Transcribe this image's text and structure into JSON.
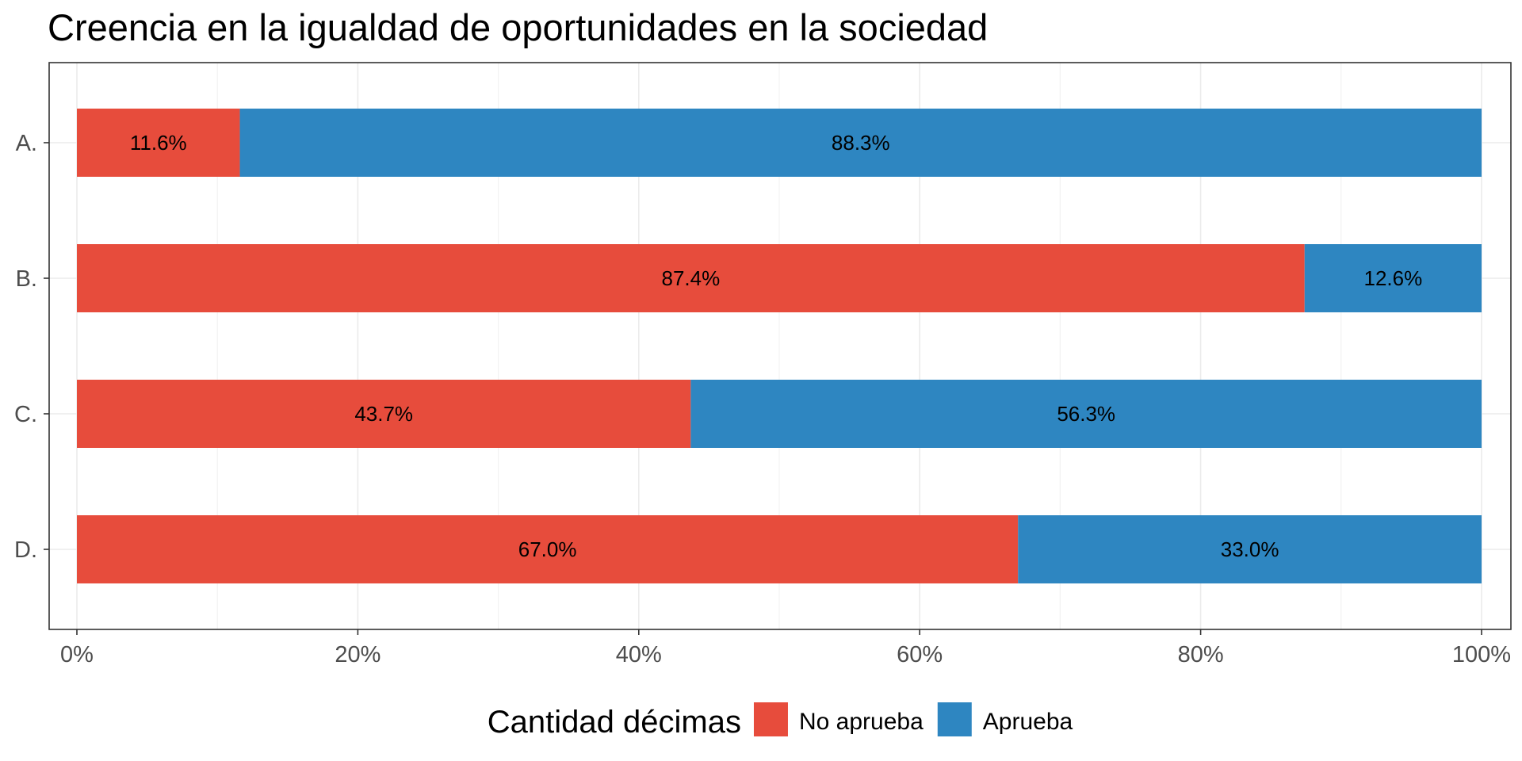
{
  "chart_data": {
    "type": "bar",
    "orientation": "horizontal",
    "stacked": true,
    "title": "Creencia en la igualdad de oportunidades en la sociedad",
    "categories": [
      "A.",
      "B.",
      "C.",
      "D."
    ],
    "series": [
      {
        "name": "No aprueba",
        "color": "#E74C3C",
        "values": [
          11.6,
          87.4,
          43.7,
          67.0
        ],
        "labels": [
          "11.6%",
          "87.4%",
          "43.7%",
          "67.0%"
        ]
      },
      {
        "name": "Aprueba",
        "color": "#2E86C1",
        "values": [
          88.3,
          12.6,
          56.3,
          33.0
        ],
        "labels": [
          "88.3%",
          "12.6%",
          "56.3%",
          "33.0%"
        ]
      }
    ],
    "x_ticks": [
      "0%",
      "20%",
      "40%",
      "60%",
      "80%",
      "100%"
    ],
    "x_tick_values": [
      0,
      20,
      40,
      60,
      80,
      100
    ],
    "xlim": [
      0,
      100
    ],
    "legend": {
      "title": "Cantidad décimas",
      "position": "bottom"
    },
    "grid": true
  }
}
